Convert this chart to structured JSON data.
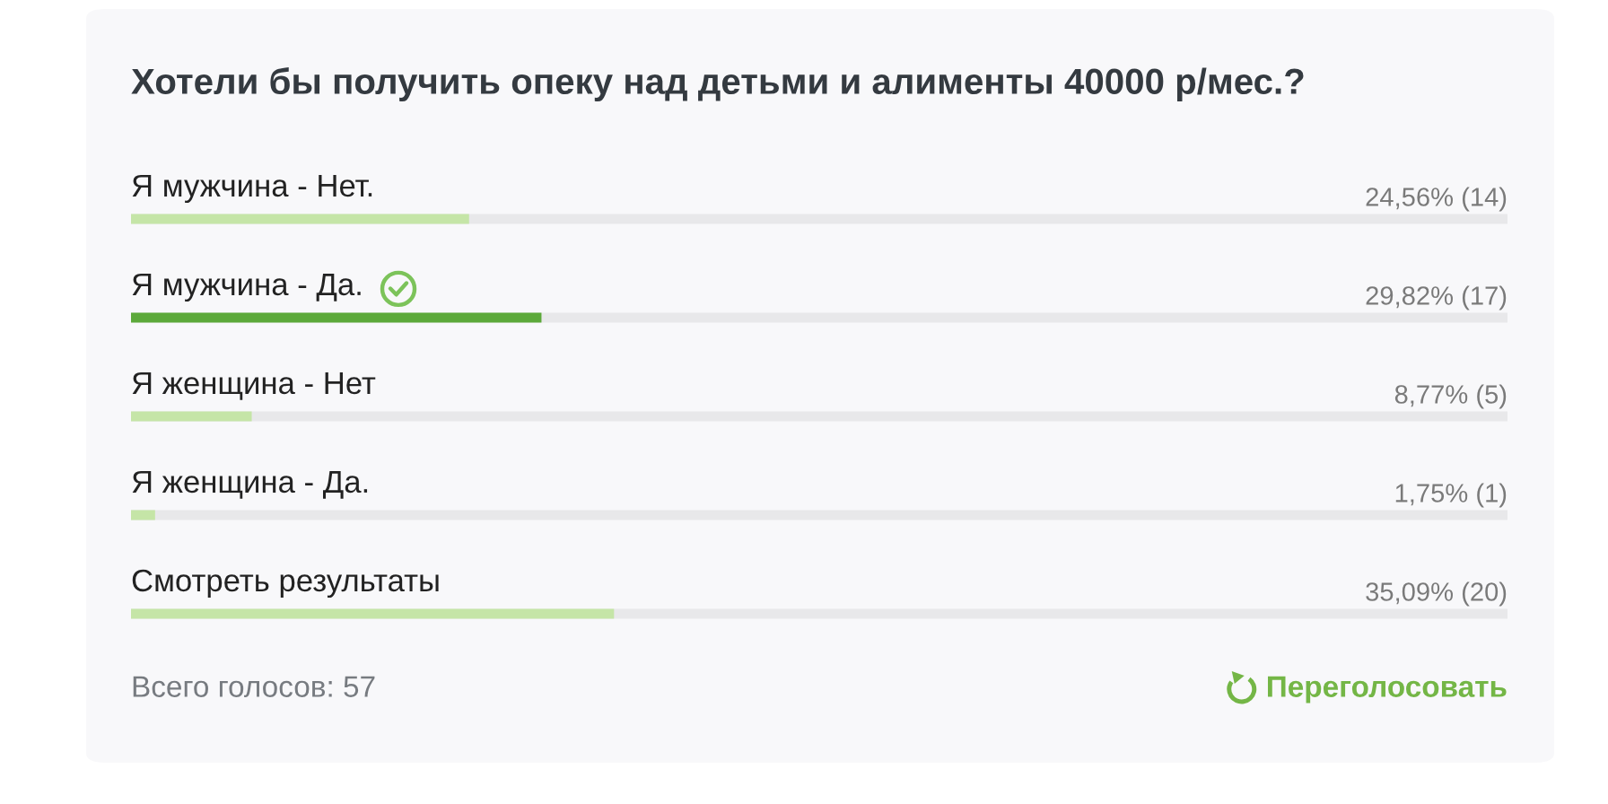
{
  "chart_data": {
    "type": "bar",
    "orientation": "horizontal",
    "title": "Хотели бы получить опеку над детьми и алименты 40000 р/мес.?",
    "categories": [
      "Я мужчина - Нет.",
      "Я мужчина - Да.",
      "Я женщина - Нет",
      "Я женщина - Да.",
      "Смотреть результаты"
    ],
    "values": [
      24.56,
      29.82,
      8.77,
      1.75,
      35.09
    ],
    "colors": [
      "#c5e5a7",
      "#5ca93a",
      "#c5e5a7",
      "#c5e5a7",
      "#c5e5a7"
    ],
    "value_labels": [
      "24,56% (14)",
      "29,82% (17)",
      "8,77% (5)",
      "1,75% (1)",
      "35,09% (20)"
    ],
    "xlim": [
      0,
      100
    ],
    "tick_labels": "y",
    "annotations": [
      "Всего голосов: 57",
      "Переголосовать"
    ]
  }
}
